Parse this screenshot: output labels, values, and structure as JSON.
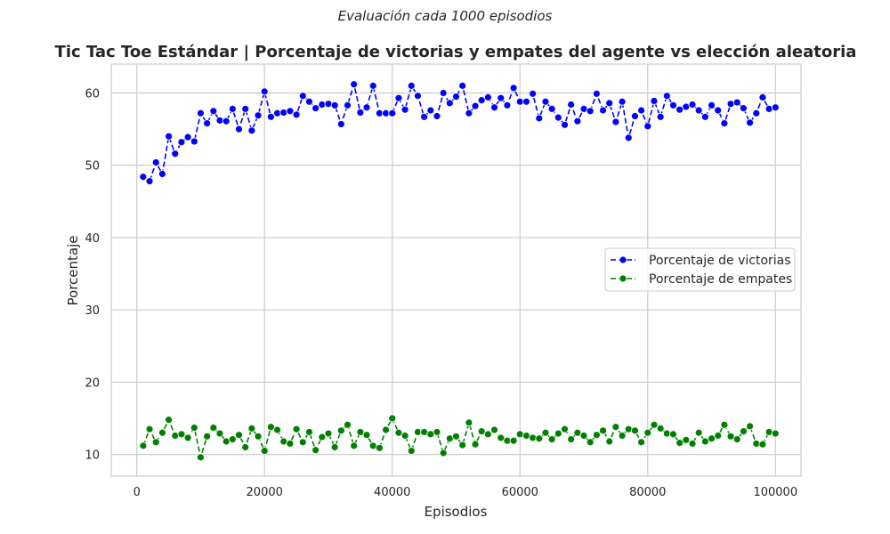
{
  "chart_data": {
    "type": "line",
    "suptitle": "Evaluación cada 1000 episodios",
    "title": "Tic Tac Toe Estándar | Porcentaje de victorias y empates del agente vs elección aleatoria",
    "xlabel": "Episodios",
    "ylabel": "Porcentaje",
    "xlim": [
      -4000,
      104000
    ],
    "ylim": [
      7,
      64
    ],
    "xticks": [
      0,
      20000,
      40000,
      60000,
      80000,
      100000
    ],
    "yticks": [
      10,
      20,
      30,
      40,
      50,
      60
    ],
    "grid": true,
    "legend_position": "center-right",
    "x": [
      1000,
      2000,
      3000,
      4000,
      5000,
      6000,
      7000,
      8000,
      9000,
      10000,
      11000,
      12000,
      13000,
      14000,
      15000,
      16000,
      17000,
      18000,
      19000,
      20000,
      21000,
      22000,
      23000,
      24000,
      25000,
      26000,
      27000,
      28000,
      29000,
      30000,
      31000,
      32000,
      33000,
      34000,
      35000,
      36000,
      37000,
      38000,
      39000,
      40000,
      41000,
      42000,
      43000,
      44000,
      45000,
      46000,
      47000,
      48000,
      49000,
      50000,
      51000,
      52000,
      53000,
      54000,
      55000,
      56000,
      57000,
      58000,
      59000,
      60000,
      61000,
      62000,
      63000,
      64000,
      65000,
      66000,
      67000,
      68000,
      69000,
      70000,
      71000,
      72000,
      73000,
      74000,
      75000,
      76000,
      77000,
      78000,
      79000,
      80000,
      81000,
      82000,
      83000,
      84000,
      85000,
      86000,
      87000,
      88000,
      89000,
      90000,
      91000,
      92000,
      93000,
      94000,
      95000,
      96000,
      97000,
      98000,
      99000,
      100000
    ],
    "series": [
      {
        "name": "Porcentaje de victorias",
        "color": "#0000ff",
        "values": [
          48.4,
          47.8,
          50.4,
          48.8,
          54.0,
          51.6,
          53.2,
          53.9,
          53.3,
          57.2,
          55.8,
          57.5,
          56.2,
          56.1,
          57.8,
          55.0,
          57.8,
          54.8,
          56.9,
          60.2,
          56.7,
          57.2,
          57.3,
          57.5,
          57.0,
          59.6,
          58.8,
          57.9,
          58.4,
          58.5,
          58.3,
          55.7,
          58.3,
          61.2,
          57.3,
          58.0,
          61.0,
          57.2,
          57.2,
          57.2,
          59.3,
          57.7,
          61.0,
          59.6,
          56.7,
          57.6,
          56.8,
          60.0,
          58.6,
          59.5,
          61.0,
          57.2,
          58.2,
          59.0,
          59.4,
          58.0,
          59.3,
          58.3,
          60.7,
          58.8,
          58.8,
          59.9,
          56.5,
          58.8,
          57.8,
          56.6,
          55.6,
          58.4,
          56.1,
          57.8,
          57.5,
          59.9,
          57.6,
          58.6,
          56.0,
          58.8,
          53.8,
          56.8,
          57.6,
          55.4,
          58.9,
          56.7,
          59.6,
          58.3,
          57.7,
          58.1,
          58.4,
          57.6,
          56.7,
          58.3,
          57.6,
          55.8,
          58.5,
          58.7,
          57.9,
          55.9,
          57.2,
          59.4,
          57.8,
          58.0
        ]
      },
      {
        "name": "Porcentaje de empates",
        "color": "#008000",
        "values": [
          11.2,
          13.5,
          11.7,
          13.0,
          14.8,
          12.6,
          12.8,
          12.3,
          13.7,
          9.6,
          12.5,
          13.7,
          12.9,
          11.8,
          12.1,
          12.7,
          11.0,
          13.6,
          12.5,
          10.5,
          13.8,
          13.4,
          11.8,
          11.5,
          13.5,
          11.7,
          13.1,
          10.6,
          12.4,
          12.9,
          11.0,
          13.3,
          14.1,
          11.2,
          13.1,
          12.7,
          11.2,
          10.9,
          13.4,
          15.0,
          13.0,
          12.6,
          10.5,
          13.1,
          13.1,
          12.8,
          13.1,
          10.2,
          12.2,
          12.5,
          11.3,
          14.4,
          11.4,
          13.2,
          12.8,
          13.4,
          12.3,
          11.9,
          11.9,
          12.8,
          12.6,
          12.3,
          12.2,
          13.0,
          12.1,
          12.9,
          13.5,
          12.1,
          13.0,
          12.6,
          11.7,
          12.7,
          13.3,
          11.8,
          13.8,
          12.6,
          13.5,
          13.3,
          11.7,
          13.0,
          14.1,
          13.6,
          12.9,
          12.8,
          11.6,
          12.0,
          11.5,
          13.0,
          11.8,
          12.2,
          12.6,
          14.1,
          12.5,
          12.1,
          13.2,
          13.9,
          11.5,
          11.4,
          13.1,
          12.9
        ]
      }
    ]
  }
}
